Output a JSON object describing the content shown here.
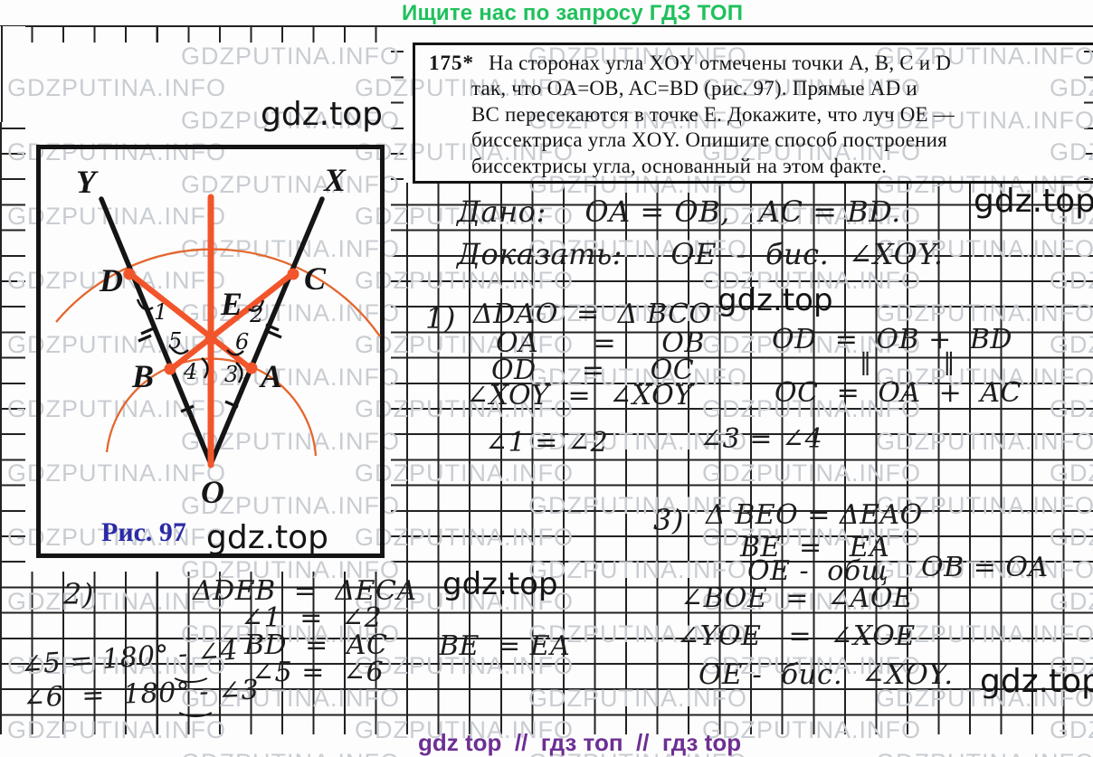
{
  "header": {
    "text": "Ищите нас по запросу ГДЗ ТОП",
    "color": "#1fc15c"
  },
  "footer": {
    "text": "gdz top  //  гдз топ  //  гдз top",
    "color": "#6d2f93"
  },
  "watermark": {
    "text": "GDZPUTINA.INFO"
  },
  "brand": "gdz.top",
  "problem": {
    "number": "175*",
    "lines": [
      "На сторонах угла XOY отмечены точки A, B, C и D",
      "так, что OA=OB, AC=BD (рис. 97). Прямые AD и",
      "BC пересекаются в точке E. Докажите, что луч OE —",
      "биссектриса угла XOY. Опишите способ построения",
      "биссектрисы угла, основанный на этом факте."
    ]
  },
  "figure": {
    "caption": "Рис. 97",
    "caption_color": "#2b2ba6",
    "accent_color": "#f2552b",
    "arc_color": "#e4672f",
    "labels": {
      "Y": "Y",
      "X": "X",
      "D": "D",
      "C": "C",
      "E": "E",
      "B": "B",
      "A": "A",
      "O": "O"
    },
    "angle_marks": {
      "a1": "1",
      "a2": "2",
      "a3": "3",
      "a4": "4",
      "a5": "5",
      "a6": "6"
    }
  },
  "solution": {
    "given": "Дано:    OA = OB,   AC = BD.",
    "prove": "Доказать:     OE  -  бис.  ∠XOY.",
    "part1": {
      "label": "1)",
      "l1": "ΔDAO  =  Δ BCO",
      "l2": "OA      =     OB",
      "l3": "OD     =     OC",
      "l4": "∠XOY  =  ∠XOY",
      "side1": "OD  =  OB +  BD",
      "marks": "‖         ‖",
      "side2": "OC  =  OA  +  AC",
      "ang12": "∠1 = ∠2",
      "ang34": "∠3 = ∠4"
    },
    "part2": {
      "label": "2)",
      "l1": "ΔDEB  =  ΔECA",
      "l2": "∠1  =  ∠2",
      "l3": "BD  =  AC",
      "l4": "∠5 =  ∠6",
      "s1": "∠5 = 180° - ∠4",
      "s2": "∠6  =  180° - ∠3",
      "mid": "BE  = EA"
    },
    "part3": {
      "label": "3)",
      "l1": "Δ BEO = ΔEAO",
      "l2": "BE  =   EA",
      "l3": "OE -  общ",
      "side": "OB = OA",
      "l4": "∠BOE  =  ∠AOE",
      "l5": "∠YOE   =  ∠XOE",
      "l6": "OE -  бис.  ∠XOY."
    }
  }
}
